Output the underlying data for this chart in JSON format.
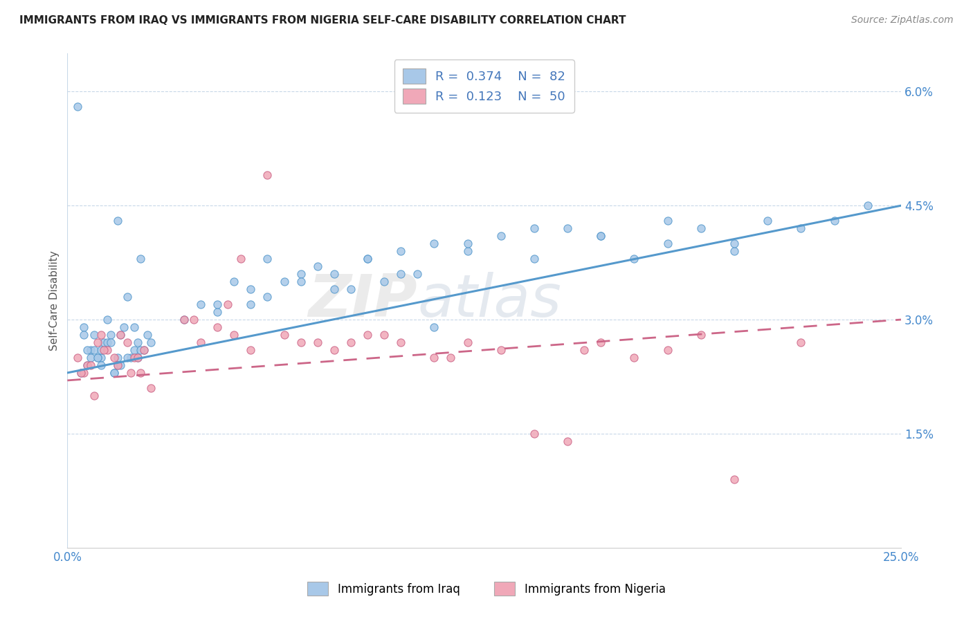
{
  "title": "IMMIGRANTS FROM IRAQ VS IMMIGRANTS FROM NIGERIA SELF-CARE DISABILITY CORRELATION CHART",
  "source": "Source: ZipAtlas.com",
  "ylabel": "Self-Care Disability",
  "x_min": 0.0,
  "x_max": 25.0,
  "y_min": 0.0,
  "y_max": 6.5,
  "y_ticks": [
    1.5,
    3.0,
    4.5,
    6.0
  ],
  "y_tick_labels": [
    "1.5%",
    "3.0%",
    "4.5%",
    "6.0%"
  ],
  "iraq_color": "#a8c8e8",
  "iraq_line_color": "#5599cc",
  "nigeria_color": "#f0a8b8",
  "nigeria_line_color": "#cc6688",
  "iraq_R": 0.374,
  "iraq_N": 82,
  "nigeria_R": 0.123,
  "nigeria_N": 50,
  "iraq_trend_start": 2.3,
  "iraq_trend_end": 4.5,
  "nigeria_trend_start": 2.2,
  "nigeria_trend_end": 3.0,
  "iraq_x": [
    0.3,
    1.5,
    2.2,
    1.0,
    0.8,
    1.2,
    1.8,
    2.5,
    0.5,
    1.5,
    0.7,
    1.0,
    1.3,
    2.0,
    1.7,
    0.9,
    1.1,
    1.4,
    2.1,
    0.6,
    1.6,
    2.3,
    0.4,
    1.2,
    1.9,
    2.4,
    0.8,
    1.5,
    2.0,
    0.7,
    1.3,
    1.8,
    2.2,
    0.5,
    1.0,
    1.6,
    2.1,
    0.9,
    1.4,
    0.6,
    3.5,
    4.0,
    5.0,
    6.0,
    7.0,
    8.0,
    5.5,
    4.5,
    6.5,
    7.5,
    9.0,
    10.0,
    11.0,
    8.5,
    12.0,
    13.0,
    9.5,
    14.0,
    15.0,
    10.5,
    16.0,
    17.0,
    18.0,
    19.0,
    20.0,
    21.0,
    11.0,
    6.0,
    7.0,
    4.5,
    5.5,
    8.0,
    9.0,
    10.0,
    12.0,
    14.0,
    16.0,
    18.0,
    20.0,
    22.0,
    23.0,
    24.0
  ],
  "iraq_y": [
    5.8,
    4.3,
    3.8,
    2.5,
    2.8,
    3.0,
    3.3,
    2.7,
    2.9,
    2.5,
    2.6,
    2.4,
    2.8,
    2.6,
    2.9,
    2.5,
    2.7,
    2.3,
    2.5,
    2.4,
    2.8,
    2.6,
    2.3,
    2.7,
    2.5,
    2.8,
    2.6,
    2.4,
    2.9,
    2.5,
    2.7,
    2.5,
    2.6,
    2.8,
    2.6,
    2.4,
    2.7,
    2.5,
    2.3,
    2.6,
    3.0,
    3.2,
    3.5,
    3.3,
    3.6,
    3.4,
    3.2,
    3.1,
    3.5,
    3.7,
    3.8,
    3.6,
    4.0,
    3.4,
    3.9,
    4.1,
    3.5,
    3.8,
    4.2,
    3.6,
    4.1,
    3.8,
    4.0,
    4.2,
    3.9,
    4.3,
    2.9,
    3.8,
    3.5,
    3.2,
    3.4,
    3.6,
    3.8,
    3.9,
    4.0,
    4.2,
    4.1,
    4.3,
    4.0,
    4.2,
    4.3,
    4.5
  ],
  "nigeria_x": [
    0.3,
    0.5,
    0.8,
    1.0,
    1.2,
    1.5,
    1.8,
    2.0,
    2.2,
    2.5,
    0.6,
    1.1,
    1.6,
    2.1,
    0.4,
    0.9,
    1.4,
    1.9,
    2.3,
    0.7,
    3.5,
    4.0,
    4.5,
    5.0,
    5.5,
    6.0,
    7.0,
    8.0,
    9.0,
    10.0,
    5.2,
    4.8,
    6.5,
    3.8,
    11.0,
    12.0,
    14.0,
    15.0,
    16.0,
    17.0,
    18.0,
    7.5,
    9.5,
    13.0,
    20.0,
    8.5,
    11.5,
    15.5,
    19.0,
    22.0
  ],
  "nigeria_y": [
    2.5,
    2.3,
    2.0,
    2.8,
    2.6,
    2.4,
    2.7,
    2.5,
    2.3,
    2.1,
    2.4,
    2.6,
    2.8,
    2.5,
    2.3,
    2.7,
    2.5,
    2.3,
    2.6,
    2.4,
    3.0,
    2.7,
    2.9,
    2.8,
    2.6,
    4.9,
    2.7,
    2.6,
    2.8,
    2.7,
    3.8,
    3.2,
    2.8,
    3.0,
    2.5,
    2.7,
    1.5,
    1.4,
    2.7,
    2.5,
    2.6,
    2.7,
    2.8,
    2.6,
    0.9,
    2.7,
    2.5,
    2.6,
    2.8,
    2.7
  ]
}
